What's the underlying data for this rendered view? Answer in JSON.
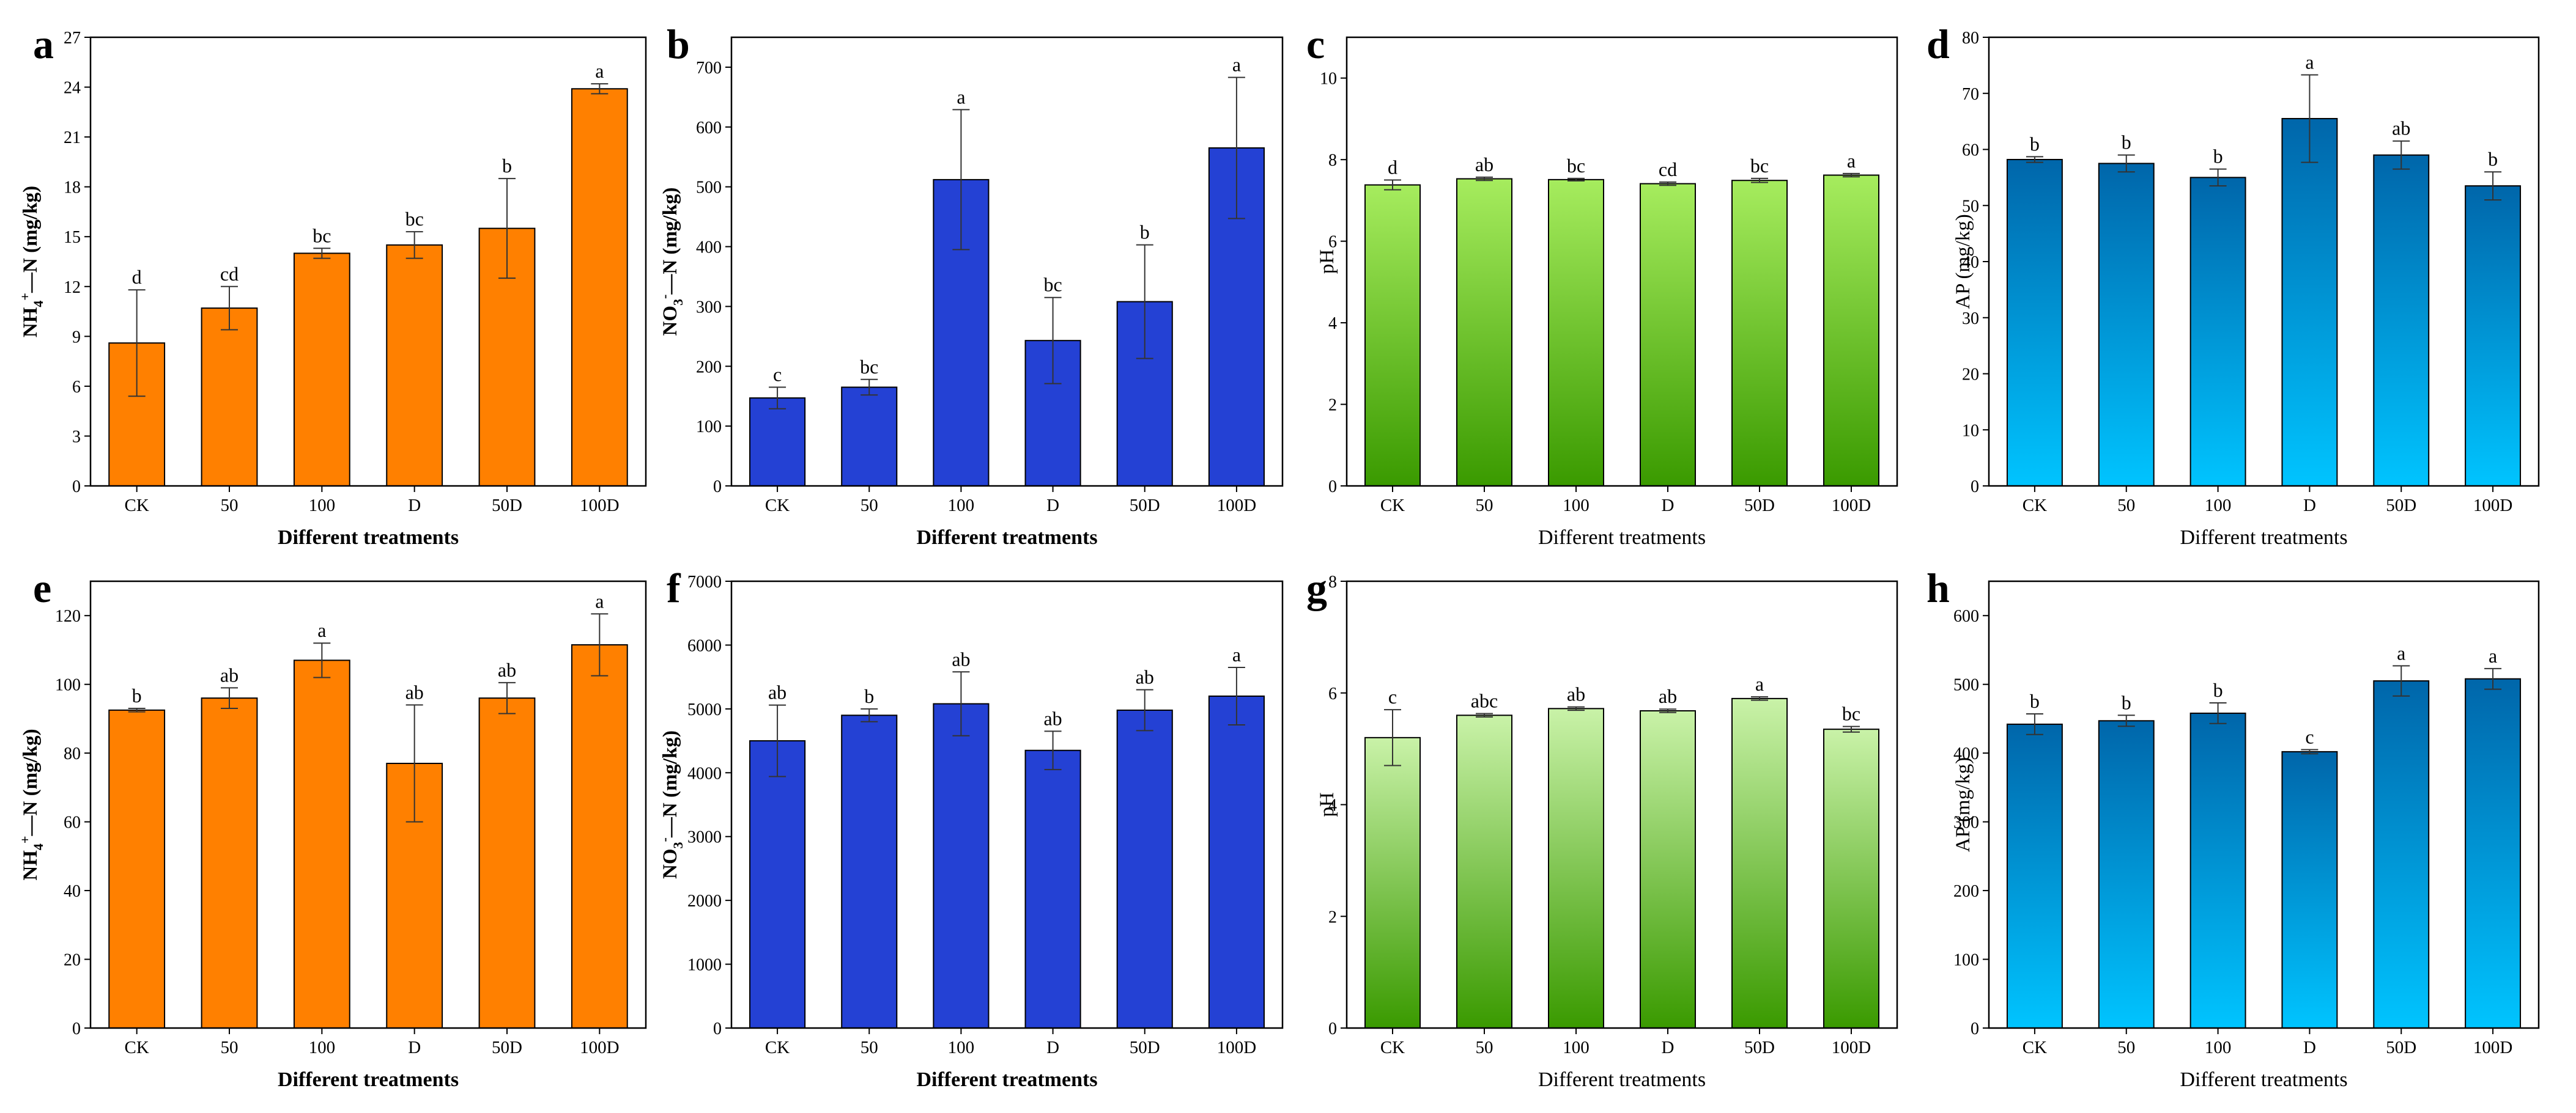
{
  "figure": {
    "categories": [
      "CK",
      "50",
      "100",
      "D",
      "50D",
      "100D"
    ]
  },
  "chart_data": [
    {
      "panel": "a",
      "type": "bar",
      "ylabel": {
        "base": "NH",
        "sub": "4",
        "sup": "+",
        "rest": "—N  (mg/kg)"
      },
      "xlabel": "Different treatments",
      "xlabel_bold": true,
      "ylim": [
        0,
        27
      ],
      "yticks": [
        0,
        3,
        6,
        9,
        12,
        15,
        18,
        21,
        24,
        27
      ],
      "categories": [
        "CK",
        "50",
        "100",
        "D",
        "50D",
        "100D"
      ],
      "values": [
        8.6,
        10.7,
        14.0,
        14.5,
        15.5,
        23.9
      ],
      "errors": [
        3.2,
        1.3,
        0.3,
        0.8,
        3.0,
        0.3
      ],
      "letters": [
        "d",
        "cd",
        "bc",
        "bc",
        "b",
        "a"
      ],
      "color": "#ff8000",
      "gradient": false
    },
    {
      "panel": "b",
      "type": "bar",
      "ylabel": {
        "base": "NO",
        "sub": "3",
        "sup": "-",
        "rest": "—N  (mg/kg)"
      },
      "xlabel": "Different treatments",
      "xlabel_bold": true,
      "ylim": [
        0,
        750
      ],
      "yticks": [
        0,
        100,
        200,
        300,
        400,
        500,
        600,
        700
      ],
      "categories": [
        "CK",
        "50",
        "100",
        "D",
        "50D",
        "100D"
      ],
      "values": [
        147,
        165,
        512,
        243,
        308,
        565
      ],
      "errors": [
        18,
        13,
        117,
        72,
        95,
        118
      ],
      "letters": [
        "c",
        "bc",
        "a",
        "bc",
        "b",
        "a"
      ],
      "color": "#2441d4",
      "gradient": false
    },
    {
      "panel": "c",
      "type": "bar",
      "ylabel": {
        "base": "pH",
        "sub": "",
        "sup": "",
        "rest": ""
      },
      "xlabel": "Different treatments",
      "xlabel_bold": false,
      "ylim": [
        0,
        11
      ],
      "yticks": [
        0,
        2,
        4,
        6,
        8,
        10
      ],
      "categories": [
        "CK",
        "50",
        "100",
        "D",
        "50D",
        "100D"
      ],
      "values": [
        7.38,
        7.53,
        7.51,
        7.41,
        7.49,
        7.62
      ],
      "errors": [
        0.12,
        0.04,
        0.03,
        0.04,
        0.05,
        0.04
      ],
      "letters": [
        "d",
        "ab",
        "bc",
        "cd",
        "bc",
        "a"
      ],
      "color": "#3a9a00",
      "color_top": "#a6ec5e",
      "gradient": true
    },
    {
      "panel": "d",
      "type": "bar",
      "ylabel": {
        "base": "AP  (mg/kg)",
        "sub": "",
        "sup": "",
        "rest": ""
      },
      "xlabel": "Different treatments",
      "xlabel_bold": false,
      "ylim": [
        0,
        80
      ],
      "yticks": [
        0,
        10,
        20,
        30,
        40,
        50,
        60,
        70,
        80
      ],
      "categories": [
        "CK",
        "50",
        "100",
        "D",
        "50D",
        "100D"
      ],
      "values": [
        58.2,
        57.5,
        55.0,
        65.5,
        59.0,
        53.5
      ],
      "errors": [
        0.5,
        1.5,
        1.5,
        7.8,
        2.5,
        2.5
      ],
      "letters": [
        "b",
        "b",
        "b",
        "a",
        "ab",
        "b"
      ],
      "color": "#00c4ff",
      "color_top": "#0066aa",
      "gradient": true
    },
    {
      "panel": "e",
      "type": "bar",
      "ylabel": {
        "base": "NH",
        "sub": "4",
        "sup": "+",
        "rest": "—N  (mg/kg)"
      },
      "xlabel": "Different treatments",
      "xlabel_bold": true,
      "ylim": [
        0,
        130
      ],
      "yticks": [
        0,
        20,
        40,
        60,
        80,
        100,
        120
      ],
      "categories": [
        "CK",
        "50",
        "100",
        "D",
        "50D",
        "100D"
      ],
      "values": [
        92.5,
        96,
        107,
        77,
        96,
        111.5
      ],
      "errors": [
        0.5,
        3.0,
        5.0,
        17.0,
        4.5,
        9.0
      ],
      "letters": [
        "b",
        "ab",
        "a",
        "ab",
        "ab",
        "a"
      ],
      "color": "#ff8000",
      "gradient": false
    },
    {
      "panel": "f",
      "type": "bar",
      "ylabel": {
        "base": "NO",
        "sub": "3",
        "sup": "-",
        "rest": "—N  (mg/kg)"
      },
      "xlabel": "Different treatments",
      "xlabel_bold": true,
      "ylim": [
        0,
        7000
      ],
      "yticks": [
        0,
        1000,
        2000,
        3000,
        4000,
        5000,
        6000,
        7000
      ],
      "categories": [
        "CK",
        "50",
        "100",
        "D",
        "50D",
        "100D"
      ],
      "values": [
        4500,
        4900,
        5080,
        4350,
        4980,
        5200
      ],
      "errors": [
        560,
        100,
        500,
        300,
        320,
        450
      ],
      "letters": [
        "ab",
        "b",
        "ab",
        "ab",
        "ab",
        "a"
      ],
      "color": "#2441d4",
      "gradient": false
    },
    {
      "panel": "g",
      "type": "bar",
      "ylabel": {
        "base": "pH",
        "sub": "",
        "sup": "",
        "rest": ""
      },
      "xlabel": "Different treatments",
      "xlabel_bold": false,
      "ylim": [
        0,
        8
      ],
      "yticks": [
        0,
        2,
        4,
        6,
        8
      ],
      "categories": [
        "CK",
        "50",
        "100",
        "D",
        "50D",
        "100D"
      ],
      "values": [
        5.2,
        5.6,
        5.72,
        5.68,
        5.9,
        5.35
      ],
      "errors": [
        0.5,
        0.03,
        0.03,
        0.03,
        0.03,
        0.05
      ],
      "letters": [
        "c",
        "abc",
        "ab",
        "ab",
        "a",
        "bc"
      ],
      "color": "#3a9a00",
      "color_top": "#c9f2a8",
      "gradient": true
    },
    {
      "panel": "h",
      "type": "bar",
      "ylabel": {
        "base": "AP (mg/kg)",
        "sub": "",
        "sup": "",
        "rest": ""
      },
      "xlabel": "Different treatments",
      "xlabel_bold": false,
      "ylim": [
        0,
        650
      ],
      "yticks": [
        0,
        100,
        200,
        300,
        400,
        500,
        600
      ],
      "categories": [
        "CK",
        "50",
        "100",
        "D",
        "50D",
        "100D"
      ],
      "values": [
        442,
        447,
        458,
        402,
        505,
        508
      ],
      "errors": [
        15,
        8,
        15,
        3,
        22,
        15
      ],
      "letters": [
        "b",
        "b",
        "b",
        "c",
        "a",
        "a"
      ],
      "color": "#00c4ff",
      "color_top": "#0066aa",
      "gradient": true
    }
  ]
}
